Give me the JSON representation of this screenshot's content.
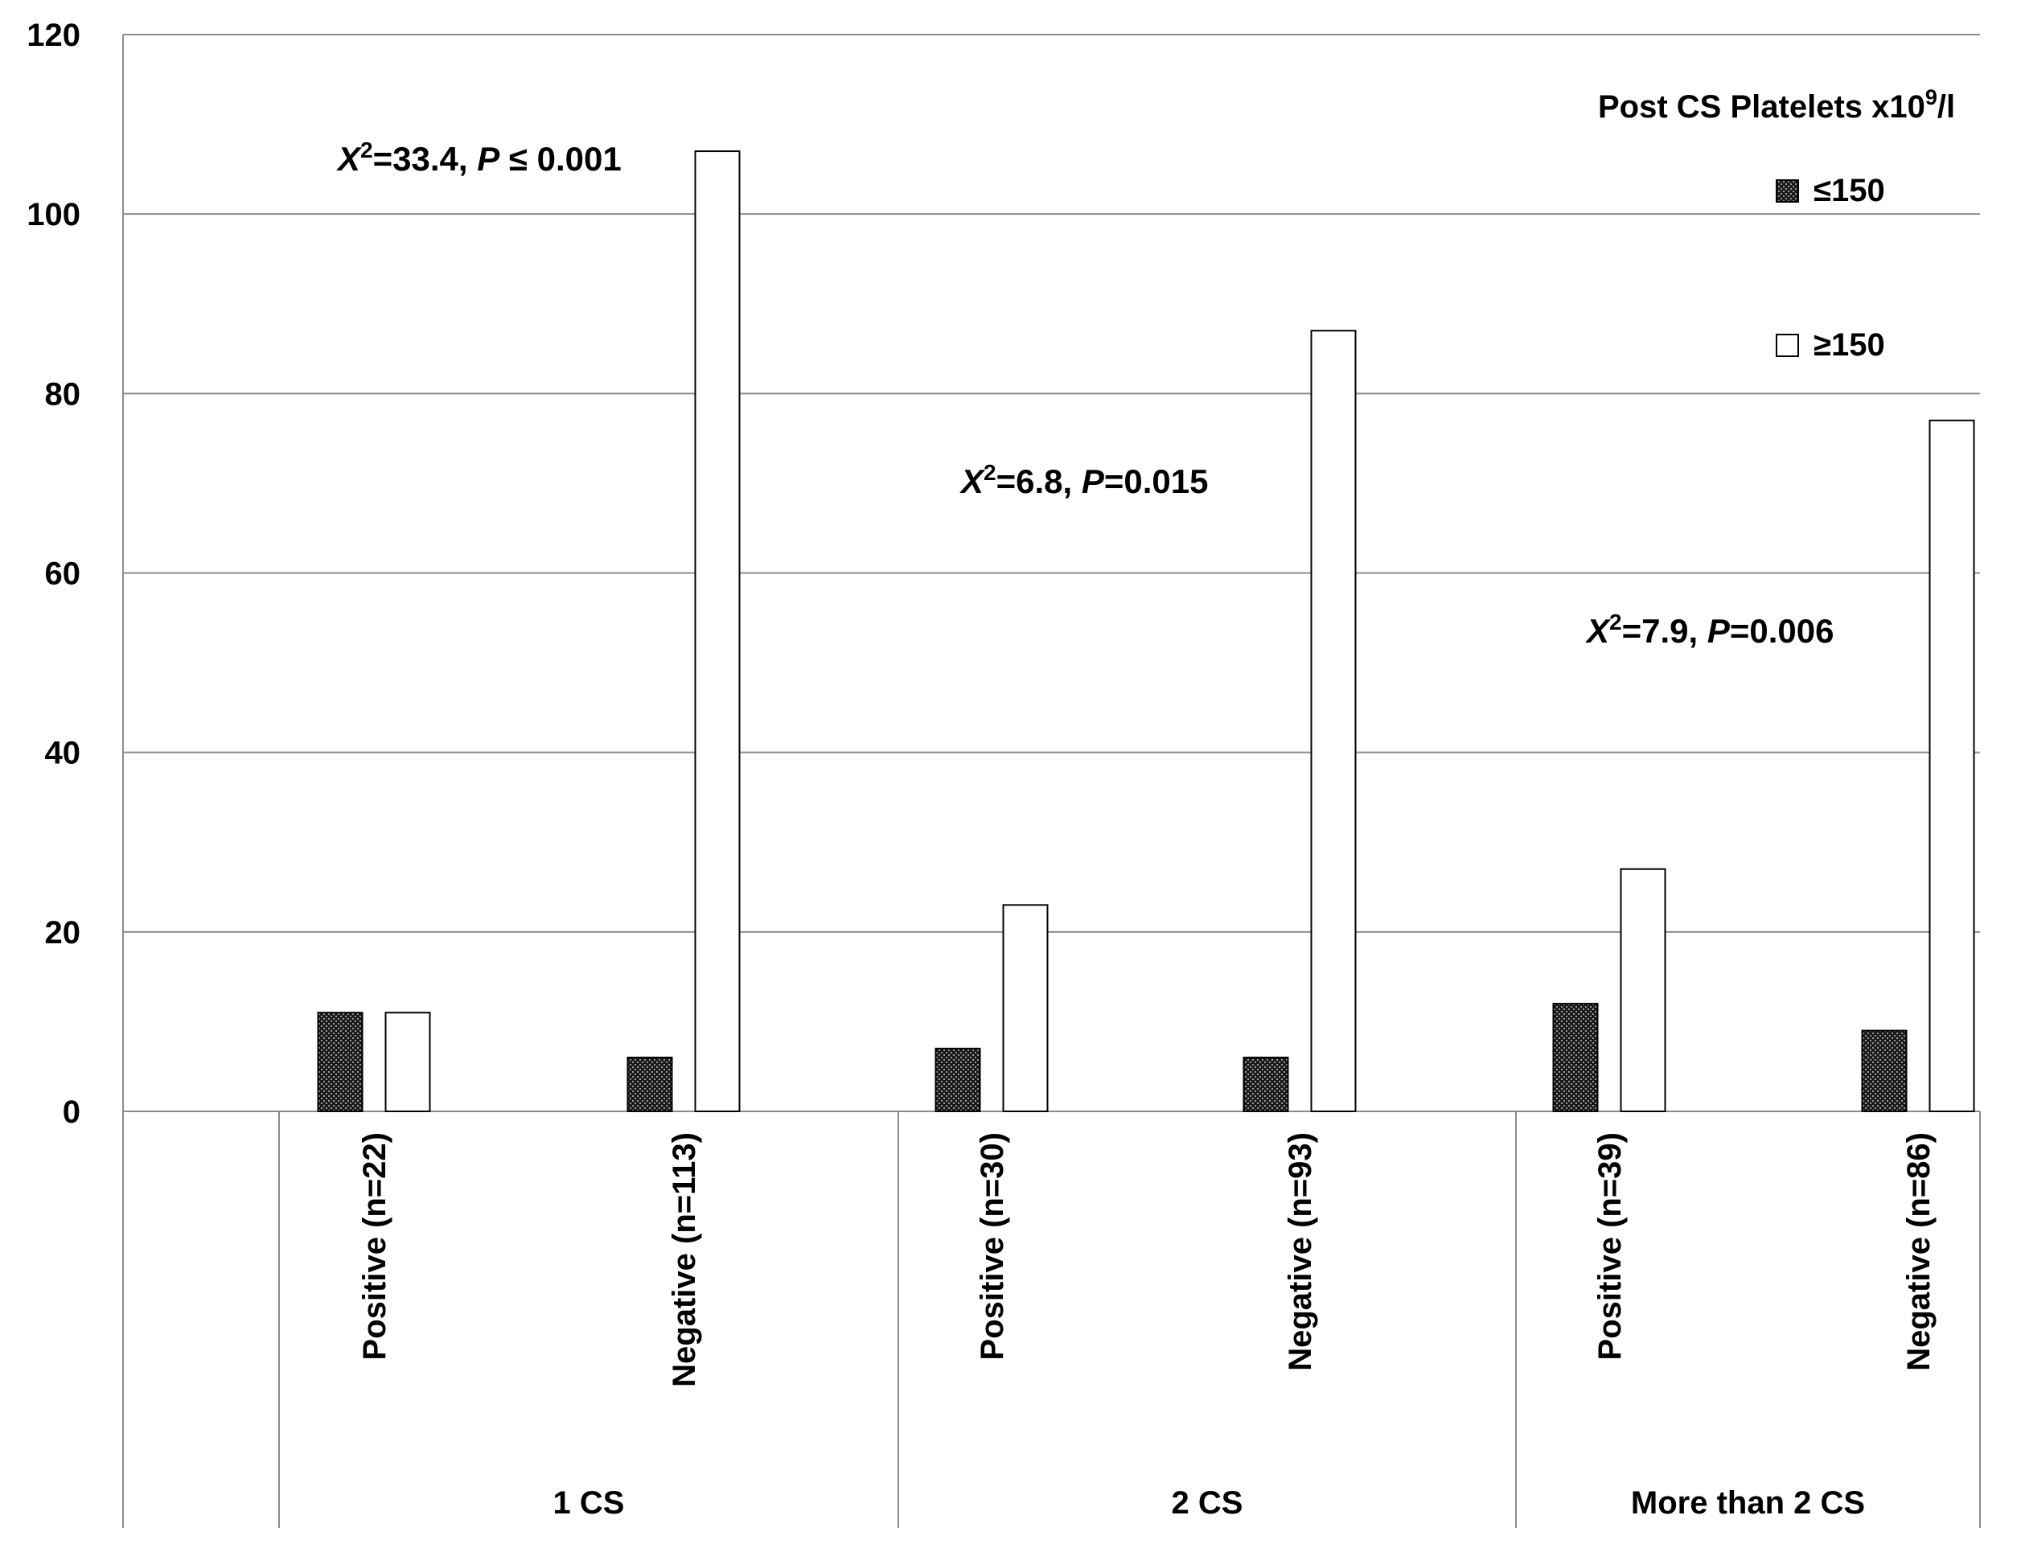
{
  "chart_data": {
    "type": "bar",
    "title": "",
    "xlabel": "",
    "ylabel": "",
    "ylim": [
      0,
      120
    ],
    "yticks": [
      0,
      20,
      40,
      60,
      80,
      100,
      120
    ],
    "grid": true,
    "legend_position": "top-right",
    "legend": {
      "title_prefix": "Post CS Platelets x10",
      "title_sup": "9",
      "title_suffix": "/l"
    },
    "series": [
      {
        "name": "≤150",
        "pattern": "dotted-dark",
        "values": [
          11,
          6,
          7,
          6,
          12,
          9
        ]
      },
      {
        "name": "≥150",
        "pattern": "white",
        "values": [
          11,
          107,
          23,
          87,
          27,
          77
        ]
      }
    ],
    "categories": [
      "Positive (n=22)",
      "Negative (n=113)",
      "Positive (n=30)",
      "Negative (n=93)",
      "Positive (n=39)",
      "Negative (n=86)"
    ],
    "groups": [
      {
        "label": "1 CS",
        "categories": [
          0,
          1
        ]
      },
      {
        "label": "2 CS",
        "categories": [
          2,
          3
        ]
      },
      {
        "label": "More than 2 CS",
        "categories": [
          4,
          5
        ]
      }
    ],
    "annotations": [
      {
        "group": 0,
        "stat_var": "X",
        "stat_sup": "2",
        "stat_value": "=33.4, ",
        "p_var": "P",
        "p_rel": " ≤ 0.001"
      },
      {
        "group": 1,
        "stat_var": "X",
        "stat_sup": "2",
        "stat_value": "=6.8, ",
        "p_var": "P",
        "p_rel": "=0.015"
      },
      {
        "group": 2,
        "stat_var": "X",
        "stat_sup": "2",
        "stat_value": "=7.9, ",
        "p_var": "P",
        "p_rel": "=0.006"
      }
    ]
  }
}
